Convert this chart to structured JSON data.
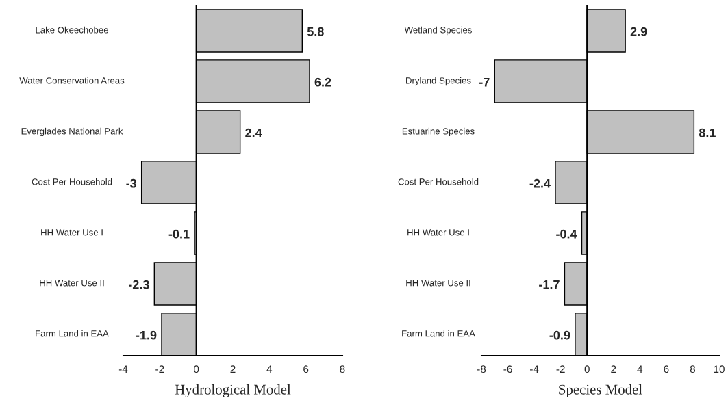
{
  "chart_data": [
    {
      "type": "bar",
      "orientation": "horizontal",
      "xlabel": "Hydrological Model",
      "categories": [
        "Lake Okeechobee",
        "Water Conservation Areas",
        "Everglades National Park",
        "Cost Per Household",
        "HH Water Use I",
        "HH Water Use II",
        "Farm Land in EAA"
      ],
      "values": [
        5.8,
        6.2,
        2.4,
        -3,
        -0.1,
        -2.3,
        -1.9
      ],
      "color": "#c0c0c0",
      "xlim": [
        -4,
        8
      ],
      "xticks": [
        -4,
        -2,
        0,
        2,
        4,
        6,
        8
      ],
      "ref_lines": [
        {
          "axis": "x",
          "value": 0,
          "color": "#000000"
        }
      ],
      "data_labels": true,
      "grid": false,
      "legend": false
    },
    {
      "type": "bar",
      "orientation": "horizontal",
      "xlabel": "Species Model",
      "categories": [
        "Wetland Species",
        "Dryland Species",
        "Estuarine Species",
        "Cost Per Household",
        "HH Water Use I",
        "HH Water Use II",
        "Farm Land in EAA"
      ],
      "values": [
        2.9,
        -7,
        8.1,
        -2.4,
        -0.4,
        -1.7,
        -0.9
      ],
      "color": "#c0c0c0",
      "xlim": [
        -8,
        10
      ],
      "xticks": [
        -8,
        -6,
        -4,
        -2,
        0,
        2,
        4,
        6,
        8,
        10
      ],
      "ref_lines": [
        {
          "axis": "x",
          "value": 0,
          "color": "#000000"
        }
      ],
      "data_labels": true,
      "grid": false,
      "legend": false
    }
  ]
}
